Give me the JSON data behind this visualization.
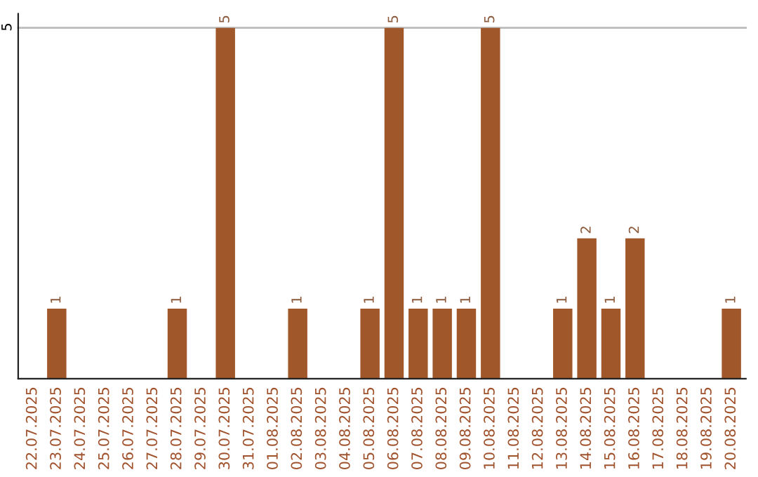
{
  "chart_data": {
    "type": "bar",
    "categories": [
      "22.07.2025",
      "23.07.2025",
      "24.07.2025",
      "25.07.2025",
      "26.07.2025",
      "27.07.2025",
      "28.07.2025",
      "29.07.2025",
      "30.07.2025",
      "31.07.2025",
      "01.08.2025",
      "02.08.2025",
      "03.08.2025",
      "04.08.2025",
      "05.08.2025",
      "06.08.2025",
      "07.08.2025",
      "08.08.2025",
      "09.08.2025",
      "10.08.2025",
      "11.08.2025",
      "12.08.2025",
      "13.08.2025",
      "14.08.2025",
      "15.08.2025",
      "16.08.2025",
      "17.08.2025",
      "18.08.2025",
      "19.08.2025",
      "20.08.2025"
    ],
    "values": [
      0,
      1,
      0,
      0,
      0,
      0,
      1,
      0,
      5,
      0,
      0,
      1,
      0,
      0,
      1,
      5,
      1,
      1,
      1,
      5,
      0,
      0,
      1,
      2,
      1,
      2,
      0,
      0,
      0,
      1
    ],
    "value_labels": [
      null,
      "1",
      null,
      null,
      null,
      null,
      "1",
      null,
      "5",
      null,
      null,
      "1",
      null,
      null,
      "1",
      "5",
      "1",
      "1",
      "1",
      "5",
      null,
      null,
      "1",
      "2",
      "1",
      "2",
      null,
      null,
      null,
      "1"
    ],
    "color": "#a0572a",
    "ylim": [
      0,
      5.2
    ],
    "yticks": [
      5
    ],
    "grid": "y"
  }
}
